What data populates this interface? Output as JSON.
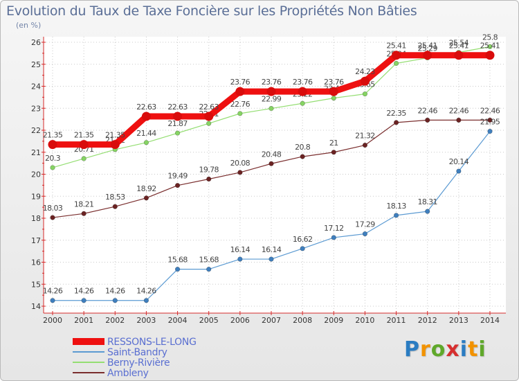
{
  "title": "Evolution du Taux de Taxe Foncière sur les Propriétés Non Bâties",
  "subtitle": "(en %)",
  "logo": {
    "letters": [
      "P",
      "r",
      "o",
      "x",
      "i",
      "t",
      "i"
    ],
    "colors": [
      "#2a7cc2",
      "#f29200",
      "#5fa82a",
      "#d62f2f",
      "#2a7cc2",
      "#f29200",
      "#5fa82a"
    ]
  },
  "chart_data": {
    "type": "line",
    "title": "Evolution du Taux de Taxe Foncière sur les Propriétés Non Bâties",
    "ylabel": "(en %)",
    "xlabel": "",
    "x": [
      "2000",
      "2001",
      "2002",
      "2003",
      "2004",
      "2005",
      "2006",
      "2007",
      "2008",
      "2009",
      "2010",
      "2011",
      "2012",
      "2013",
      "2014"
    ],
    "ylim": [
      14,
      26
    ],
    "yticks": [
      "14",
      "15",
      "16",
      "17",
      "18",
      "19",
      "20",
      "21",
      "22",
      "23",
      "24",
      "25",
      "26"
    ],
    "grid": true,
    "legend": "bottom-left",
    "series": [
      {
        "name": "Ambleny",
        "color": "#7a2e2e",
        "marker": "#6b2323",
        "width": 1.2,
        "values": [
          18.03,
          18.21,
          18.53,
          18.92,
          19.49,
          19.78,
          20.08,
          20.48,
          20.8,
          21,
          21.32,
          22.35,
          22.46,
          22.46,
          22.46
        ],
        "labels": [
          "18.03",
          "18.21",
          "18.53",
          "18.92",
          "19.49",
          "19.78",
          "20.08",
          "20.48",
          "20.8",
          "21",
          "21.32",
          "22.35",
          "22.46",
          "22.46",
          "22.46"
        ]
      },
      {
        "name": "Saint-Bandry",
        "color": "#5b9ad2",
        "marker": "#3f7fbe",
        "width": 1.2,
        "values": [
          14.26,
          14.26,
          14.26,
          14.26,
          15.68,
          15.68,
          16.14,
          16.14,
          16.62,
          17.12,
          17.29,
          18.13,
          18.31,
          20.14,
          21.95
        ],
        "labels": [
          "14.26",
          "14.26",
          "14.26",
          "14.26",
          "15.68",
          "15.68",
          "16.14",
          "16.14",
          "16.62",
          "17.12",
          "17.29",
          "18.13",
          "18.31",
          "20.14",
          "21.95"
        ]
      },
      {
        "name": "Berny-Rivière",
        "color": "#94de72",
        "marker": "#86d463",
        "width": 1.2,
        "values": [
          20.3,
          20.71,
          21.12,
          21.44,
          21.87,
          22.31,
          22.76,
          22.99,
          23.22,
          23.46,
          23.65,
          25.04,
          25.29,
          25.54,
          25.8
        ],
        "labels": [
          "20.3",
          "20.71",
          "21.12",
          "21.44",
          "21.87",
          "22.31",
          "22.76",
          "22.99",
          "23.22",
          "23.46",
          "23.65",
          "25.04",
          "25.29",
          "25.54",
          "25.8"
        ]
      },
      {
        "name": "RESSONS-LE-LONG",
        "color": "#ee1010",
        "marker": "#d90c0c",
        "width": 9,
        "values": [
          21.35,
          21.35,
          21.35,
          22.63,
          22.63,
          22.63,
          23.76,
          23.76,
          23.76,
          23.76,
          24.23,
          25.41,
          25.41,
          25.41,
          25.41
        ],
        "labels": [
          "21.35",
          "21.35",
          "21.35",
          "22.63",
          "22.63",
          "22.63",
          "23.76",
          "23.76",
          "23.76",
          "23.76",
          "24.23",
          "25.41",
          "25.41",
          "25.41",
          "25.41"
        ]
      }
    ],
    "legend_order": [
      "RESSONS-LE-LONG",
      "Saint-Bandry",
      "Berny-Rivière",
      "Ambleny"
    ]
  }
}
